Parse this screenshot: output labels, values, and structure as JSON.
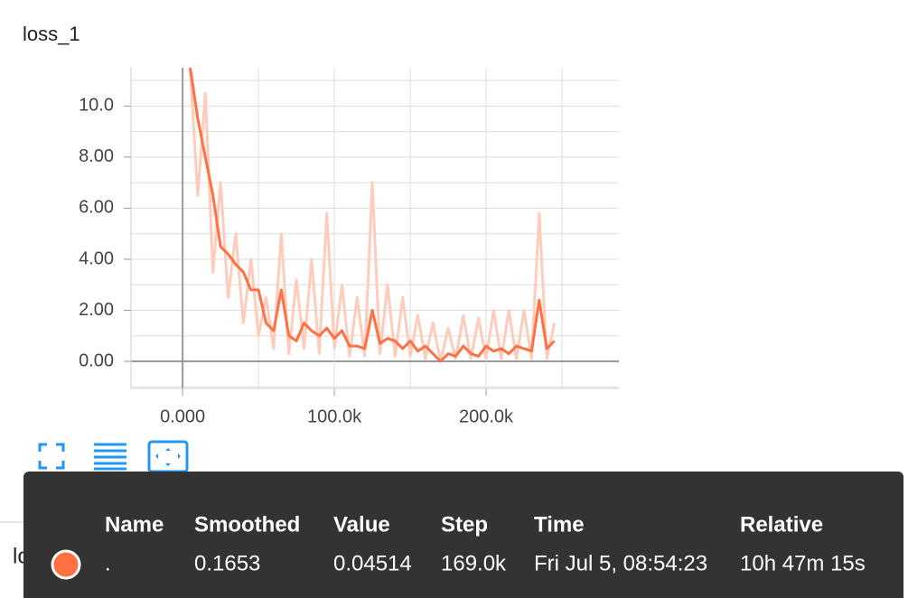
{
  "chart_data": {
    "type": "line",
    "title": "loss_1",
    "x": [
      5000,
      10000,
      15000,
      20000,
      25000,
      30000,
      35000,
      40000,
      45000,
      50000,
      55000,
      60000,
      65000,
      70000,
      75000,
      80000,
      85000,
      90000,
      95000,
      100000,
      105000,
      110000,
      115000,
      120000,
      125000,
      130000,
      135000,
      140000,
      145000,
      150000,
      155000,
      160000,
      165000,
      170000,
      175000,
      180000,
      185000,
      190000,
      195000,
      200000,
      205000,
      210000,
      215000,
      220000,
      225000,
      230000,
      235000,
      240000,
      245000
    ],
    "series": [
      {
        "color": "#ffccbc",
        "values": [
          11.5,
          6.5,
          10.5,
          3.5,
          7,
          2.5,
          5,
          1.5,
          4,
          1,
          2.5,
          0.5,
          5,
          0.3,
          3.2,
          0.5,
          4,
          0.3,
          5.8,
          0.5,
          3,
          0.2,
          2.5,
          0.2,
          7,
          0.3,
          3,
          0.2,
          2.5,
          0.2,
          1.8,
          0.1,
          1.5,
          0,
          1.3,
          0.1,
          1.8,
          0.1,
          1.7,
          0.1,
          2,
          0.1,
          2,
          0.1,
          2,
          0.1,
          5.8,
          0.1,
          1.5
        ]
      },
      {
        "color": "#ff7043",
        "values": [
          11.5,
          9.5,
          8,
          6.5,
          4.5,
          4.2,
          3.8,
          3.5,
          2.8,
          2.8,
          1.5,
          1.2,
          2.8,
          1,
          0.8,
          1.5,
          1.2,
          1,
          1.3,
          0.9,
          1.2,
          0.6,
          0.6,
          0.5,
          2,
          0.7,
          0.9,
          0.8,
          0.5,
          0.8,
          0.4,
          0.6,
          0.3,
          0,
          0.3,
          0.2,
          0.6,
          0.3,
          0.2,
          0.6,
          0.4,
          0.5,
          0.3,
          0.6,
          0.5,
          0.4,
          2.4,
          0.5,
          0.8
        ]
      }
    ],
    "xlim": [
      -34000,
      287500
    ],
    "ylim": [
      -1.06,
      11.5
    ],
    "xticks": [
      {
        "value": 0,
        "label": "0.000"
      },
      {
        "value": 100000,
        "label": "100.0k"
      },
      {
        "value": 200000,
        "label": "200.0k"
      }
    ],
    "x_minor_ticks": [
      50000,
      150000,
      250000
    ],
    "yticks": [
      {
        "value": 0,
        "label": "0.00"
      },
      {
        "value": 2,
        "label": "2.00"
      },
      {
        "value": 4,
        "label": "4.00"
      },
      {
        "value": 6,
        "label": "6.00"
      },
      {
        "value": 8,
        "label": "8.00"
      },
      {
        "value": 10,
        "label": "10.0"
      }
    ],
    "y_minor_ticks": [
      -1,
      1,
      3,
      5,
      7,
      9,
      11
    ],
    "grid": true
  },
  "background_label": "loss",
  "tooltip": {
    "headers": [
      "Name",
      "Smoothed",
      "Value",
      "Step",
      "Time",
      "Relative"
    ],
    "row": [
      ".",
      "0.1653",
      "0.04514",
      "169.0k",
      "Fri Jul 5, 08:54:23",
      "10h 47m 15s"
    ]
  }
}
